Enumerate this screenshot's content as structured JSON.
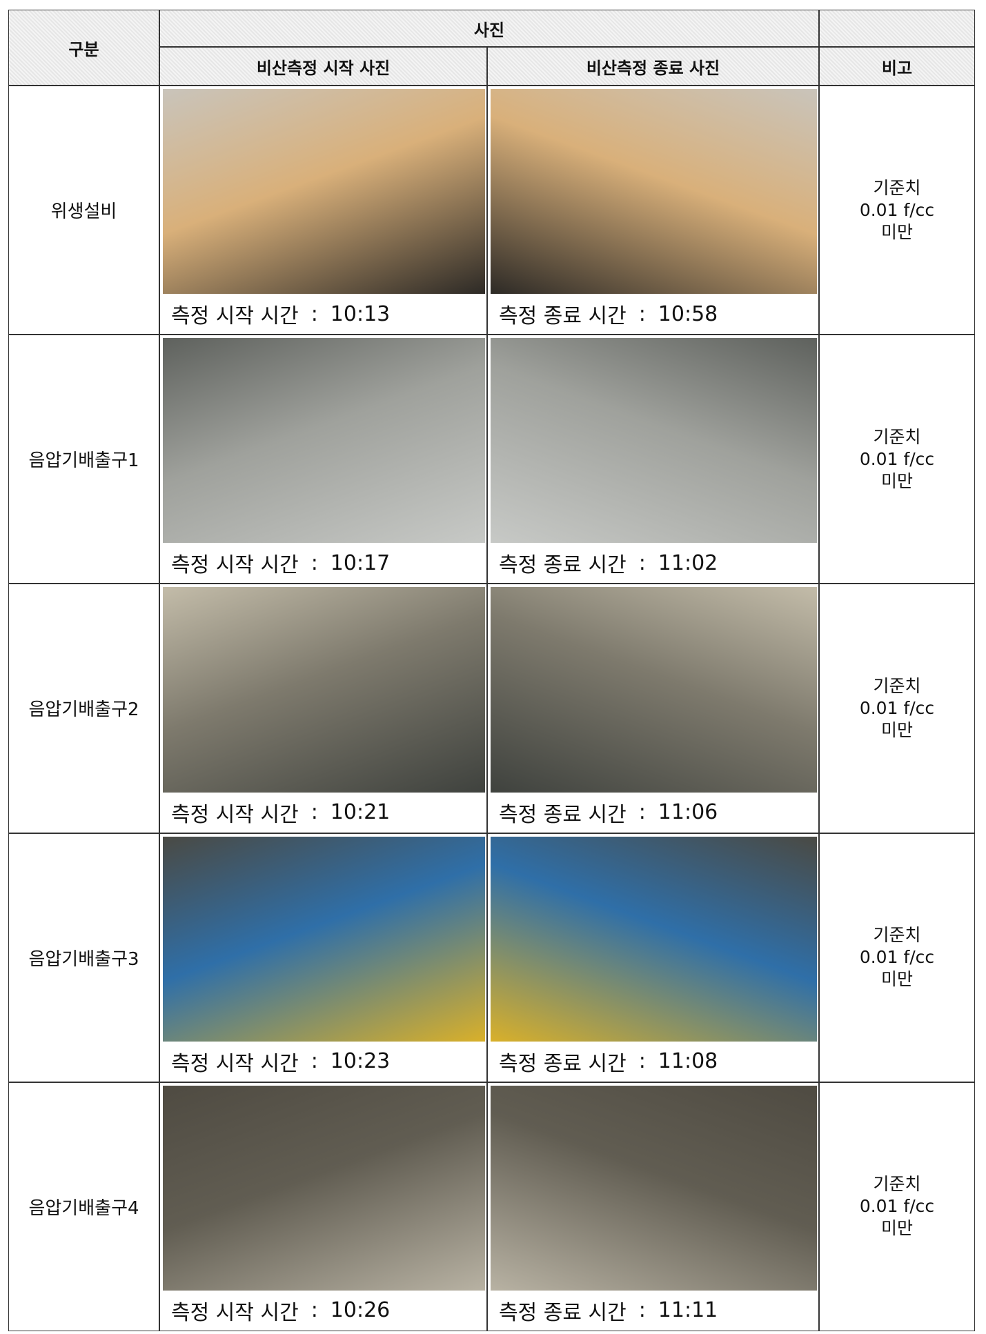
{
  "table": {
    "headers": {
      "category": "구분",
      "photos": "사진",
      "start_photo": "비산측정 시작 사진",
      "end_photo": "비산측정 종료 사진",
      "remark": "비고"
    },
    "rows": [
      {
        "name": "위생설비",
        "start_label": "측정 시작 시간",
        "start_sep": ":",
        "start_time": "10:13",
        "end_label": "측정 종료 시간",
        "end_sep": ":",
        "end_time": "10:58",
        "remark": [
          "기준치",
          "0.01 f/cc",
          "미만"
        ]
      },
      {
        "name": "음압기배출구1",
        "start_label": "측정 시작 시간",
        "start_sep": ":",
        "start_time": "10:17",
        "end_label": "측정 종료 시간",
        "end_sep": ":",
        "end_time": "11:02",
        "remark": [
          "기준치",
          "0.01 f/cc",
          "미만"
        ]
      },
      {
        "name": "음압기배출구2",
        "start_label": "측정 시작 시간",
        "start_sep": ":",
        "start_time": "10:21",
        "end_label": "측정 종료 시간",
        "end_sep": ":",
        "end_time": "11:06",
        "remark": [
          "기준치",
          "0.01 f/cc",
          "미만"
        ]
      },
      {
        "name": "음압기배출구3",
        "start_label": "측정 시작 시간",
        "start_sep": ":",
        "start_time": "10:23",
        "end_label": "측정 종료 시간",
        "end_sep": ":",
        "end_time": "11:08",
        "remark": [
          "기준치",
          "0.01 f/cc",
          "미만"
        ]
      },
      {
        "name": "음압기배출구4",
        "start_label": "측정 시작 시간",
        "start_sep": ":",
        "start_time": "10:26",
        "end_label": "측정 종료 시간",
        "end_sep": ":",
        "end_time": "11:11",
        "remark": [
          "기준치",
          "0.01 f/cc",
          "미만"
        ]
      }
    ]
  }
}
